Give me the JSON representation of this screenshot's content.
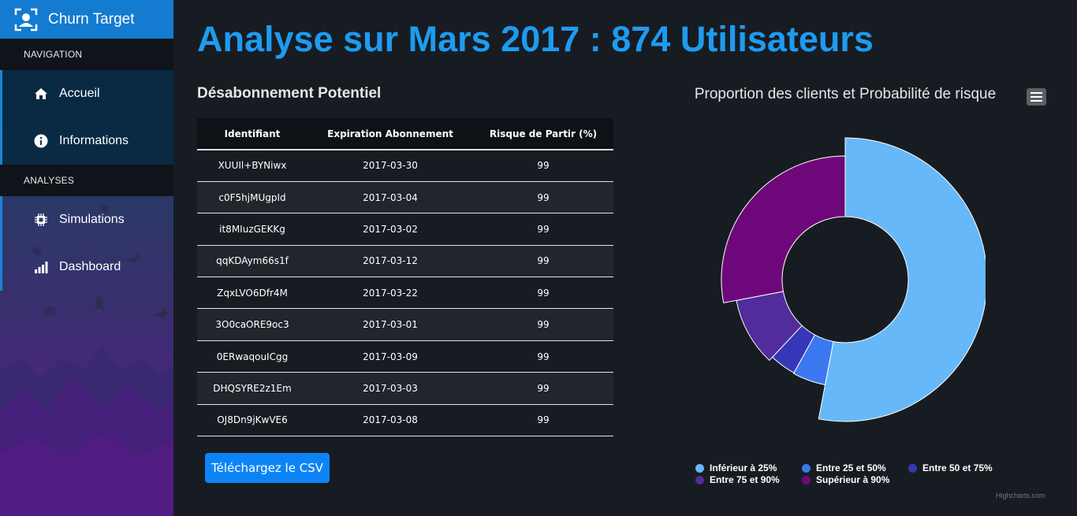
{
  "brand": {
    "name": "Churn Target"
  },
  "nav": {
    "header_navigation": "NAVIGATION",
    "header_analyses": "ANALYSES",
    "items": [
      {
        "label": "Accueil",
        "icon": "home-icon"
      },
      {
        "label": "Informations",
        "icon": "info-icon"
      },
      {
        "label": "Simulations",
        "icon": "chip-icon"
      },
      {
        "label": "Dashboard",
        "icon": "bar-chart-icon"
      }
    ]
  },
  "page": {
    "title": "Analyse sur Mars 2017 : 874 Utilisateurs",
    "section_title": "Désabonnement Potentiel",
    "download_label": "Téléchargez le CSV"
  },
  "table": {
    "headers": [
      "Identifiant",
      "Expiration Abonnement",
      "Risque de Partir (%)"
    ],
    "rows": [
      [
        "XUUIl+BYNiwx",
        "2017-03-30",
        "99"
      ],
      [
        "c0F5hjMUgpId",
        "2017-03-04",
        "99"
      ],
      [
        "it8MIuzGEKKg",
        "2017-03-02",
        "99"
      ],
      [
        "qqKDAym66s1f",
        "2017-03-12",
        "99"
      ],
      [
        "ZqxLVO6Dfr4M",
        "2017-03-22",
        "99"
      ],
      [
        "3O0caORE9oc3",
        "2017-03-01",
        "99"
      ],
      [
        "0ERwaqouICgg",
        "2017-03-09",
        "99"
      ],
      [
        "DHQSYRE2z1Em",
        "2017-03-03",
        "99"
      ],
      [
        "OJ8Dn9jKwVE6",
        "2017-03-08",
        "99"
      ]
    ]
  },
  "chart": {
    "title": "Proportion des clients et Probabilité de risque",
    "credits": "Highcharts.com"
  },
  "chart_data": {
    "type": "pie",
    "title": "Proportion des clients et Probabilité de risque",
    "variant": "donut",
    "legend_position": "bottom",
    "categories": [
      "Inférieur à 25%",
      "Entre 25 et 50%",
      "Entre 50 et 75%",
      "Entre 75 et 90%",
      "Supérieur à 90%"
    ],
    "values": [
      53,
      5,
      4,
      10,
      28
    ],
    "colors": [
      "#67b8f8",
      "#3a79f0",
      "#3537b8",
      "#522c9a",
      "#6e087a"
    ]
  }
}
